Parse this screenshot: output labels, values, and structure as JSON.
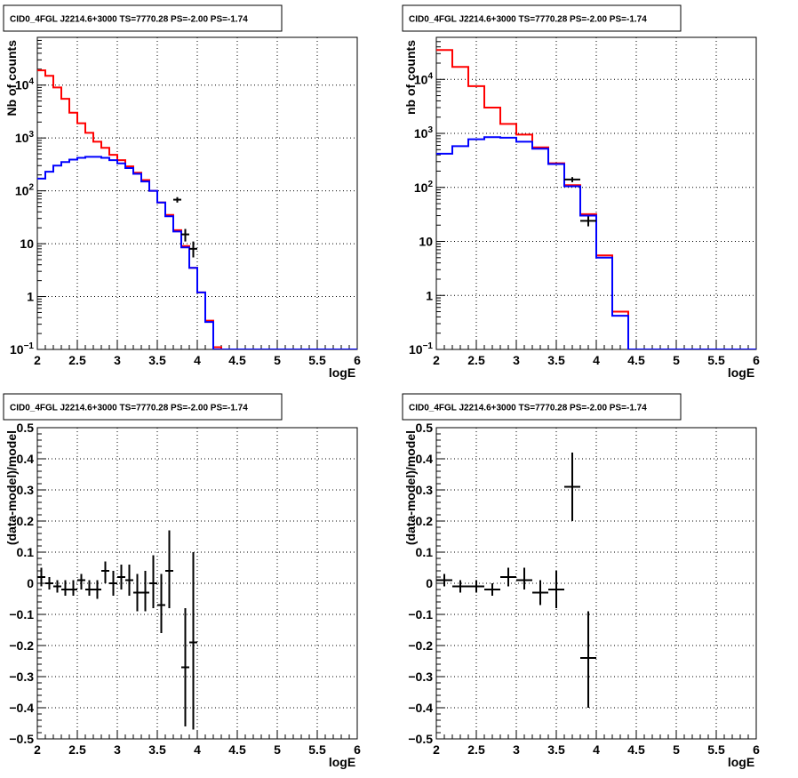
{
  "colors": {
    "model": "#ff0000",
    "model_alt": "#0000ff",
    "data": "#000000",
    "grid": "#000000",
    "frame": "#000000"
  },
  "chart_data": [
    {
      "type": "line",
      "title": "CID0_4FGL J2214.6+3000 TS=7770.28 PS=-2.00 PS=-1.74",
      "xlabel": "logE",
      "ylabel": "Nb of counts",
      "xlim": [
        2,
        6
      ],
      "ylim": [
        0.1,
        80000
      ],
      "log_y": true,
      "grid": true,
      "x_ticks": [
        "2",
        "2.5",
        "3",
        "3.5",
        "4",
        "4.5",
        "5",
        "5.5",
        "6"
      ],
      "y_ticks": [
        {
          "value": 0.1,
          "label": "10",
          "sup": "−1"
        },
        {
          "value": 1,
          "label": "1",
          "sup": ""
        },
        {
          "value": 10,
          "label": "10",
          "sup": ""
        },
        {
          "value": 100,
          "label": "10",
          "sup": "2"
        },
        {
          "value": 1000,
          "label": "10",
          "sup": "3"
        },
        {
          "value": 10000,
          "label": "10",
          "sup": "4"
        }
      ],
      "bin_edges": [
        2.0,
        2.1,
        2.2,
        2.3,
        2.4,
        2.5,
        2.6,
        2.7,
        2.8,
        2.9,
        3.0,
        3.1,
        3.2,
        3.3,
        3.4,
        3.5,
        3.6,
        3.7,
        3.8,
        3.9,
        4.0,
        4.1,
        4.2,
        4.3,
        4.4,
        4.5,
        4.6,
        4.7,
        4.8,
        4.9,
        5.0,
        5.1,
        5.2,
        5.3,
        5.4,
        5.5,
        5.6,
        5.7,
        5.8,
        5.9,
        6.0
      ],
      "series": [
        {
          "color": "#ff0000",
          "values": [
            19000,
            15000,
            9000,
            5500,
            3000,
            1900,
            1250,
            850,
            650,
            480,
            380,
            290,
            220,
            160,
            100,
            60,
            35,
            18,
            9,
            3.5,
            1.2,
            0.35,
            0.11,
            0.1,
            0.1,
            0.1,
            0.1,
            0.1,
            0.1,
            0.1,
            0.1,
            0.1,
            0.1,
            0.1,
            0.1,
            0.1,
            0.1,
            0.1,
            0.1,
            0.1
          ]
        },
        {
          "color": "#0000ff",
          "values": [
            170,
            230,
            300,
            350,
            390,
            420,
            440,
            440,
            420,
            380,
            330,
            270,
            210,
            150,
            100,
            60,
            33,
            17,
            8.5,
            3.5,
            1.2,
            0.33,
            0.1,
            0.1,
            0.1,
            0.1,
            0.1,
            0.1,
            0.1,
            0.1,
            0.1,
            0.1,
            0.1,
            0.1,
            0.1,
            0.1,
            0.1,
            0.1,
            0.1,
            0.1
          ]
        }
      ],
      "points": [
        {
          "x": 3.75,
          "y": 68,
          "xerr": 0.05,
          "ylo": 60,
          "yhi": 76
        },
        {
          "x": 3.85,
          "y": 15,
          "xerr": 0.05,
          "ylo": 11,
          "yhi": 19
        },
        {
          "x": 3.95,
          "y": 8,
          "xerr": 0.05,
          "ylo": 5.5,
          "yhi": 11
        }
      ]
    },
    {
      "type": "line",
      "title": "CID0_4FGL J2214.6+3000 TS=7770.28 PS=-2.00 PS=-1.74",
      "xlabel": "logE",
      "ylabel": "nb of counts",
      "xlim": [
        2,
        6
      ],
      "ylim": [
        0.1,
        60000
      ],
      "log_y": true,
      "grid": true,
      "x_ticks": [
        "2",
        "2.5",
        "3",
        "3.5",
        "4",
        "4.5",
        "5",
        "5.5",
        "6"
      ],
      "y_ticks": [
        {
          "value": 0.1,
          "label": "10",
          "sup": "−1"
        },
        {
          "value": 1,
          "label": "1",
          "sup": ""
        },
        {
          "value": 10,
          "label": "10",
          "sup": ""
        },
        {
          "value": 100,
          "label": "10",
          "sup": "2"
        },
        {
          "value": 1000,
          "label": "10",
          "sup": "3"
        },
        {
          "value": 10000,
          "label": "10",
          "sup": "4"
        }
      ],
      "bin_edges": [
        2.0,
        2.2,
        2.4,
        2.6,
        2.8,
        3.0,
        3.2,
        3.4,
        3.6,
        3.8,
        4.0,
        4.2,
        4.4,
        4.6,
        4.8,
        5.0,
        5.2,
        5.4,
        5.6,
        5.8,
        6.0
      ],
      "series": [
        {
          "color": "#ff0000",
          "values": [
            35000,
            17000,
            7500,
            3000,
            1500,
            950,
            550,
            280,
            110,
            32,
            5.5,
            0.5,
            0.1,
            0.1,
            0.1,
            0.1,
            0.1,
            0.1,
            0.1,
            0.1
          ]
        },
        {
          "color": "#0000ff",
          "values": [
            420,
            580,
            780,
            850,
            830,
            700,
            520,
            270,
            105,
            30,
            5,
            0.42,
            0.1,
            0.1,
            0.1,
            0.1,
            0.1,
            0.1,
            0.1,
            0.1
          ]
        }
      ],
      "points": [
        {
          "x": 3.7,
          "y": 140,
          "xerr": 0.1,
          "ylo": 125,
          "yhi": 155
        },
        {
          "x": 3.9,
          "y": 24,
          "xerr": 0.1,
          "ylo": 19,
          "yhi": 29
        }
      ]
    },
    {
      "type": "scatter",
      "title": "CID0_4FGL J2214.6+3000 TS=7770.28 PS=-2.00 PS=-1.74",
      "xlabel": "logE",
      "ylabel": "(data-model)/model",
      "xlim": [
        2,
        6
      ],
      "ylim": [
        -0.5,
        0.5
      ],
      "log_y": false,
      "grid": true,
      "x_ticks": [
        "2",
        "2.5",
        "3",
        "3.5",
        "4",
        "4.5",
        "5",
        "5.5",
        "6"
      ],
      "y_ticks": [
        {
          "value": -0.5,
          "label": "−0.5",
          "sup": ""
        },
        {
          "value": -0.4,
          "label": "−0.4",
          "sup": ""
        },
        {
          "value": -0.3,
          "label": "−0.3",
          "sup": ""
        },
        {
          "value": -0.2,
          "label": "−0.2",
          "sup": ""
        },
        {
          "value": -0.1,
          "label": "−0.1",
          "sup": ""
        },
        {
          "value": 0,
          "label": "0",
          "sup": ""
        },
        {
          "value": 0.1,
          "label": "0.1",
          "sup": ""
        },
        {
          "value": 0.2,
          "label": "0.2",
          "sup": ""
        },
        {
          "value": 0.3,
          "label": "0.3",
          "sup": ""
        },
        {
          "value": 0.4,
          "label": "0.4",
          "sup": ""
        },
        {
          "value": 0.5,
          "label": "0.5",
          "sup": ""
        }
      ],
      "points": [
        {
          "x": 2.05,
          "y": 0.02,
          "xerr": 0.05,
          "ylo": -0.01,
          "yhi": 0.05
        },
        {
          "x": 2.15,
          "y": 0.0,
          "xerr": 0.05,
          "ylo": -0.02,
          "yhi": 0.02
        },
        {
          "x": 2.25,
          "y": -0.01,
          "xerr": 0.05,
          "ylo": -0.03,
          "yhi": 0.01
        },
        {
          "x": 2.35,
          "y": -0.02,
          "xerr": 0.05,
          "ylo": -0.04,
          "yhi": 0.01
        },
        {
          "x": 2.45,
          "y": -0.02,
          "xerr": 0.05,
          "ylo": -0.04,
          "yhi": 0.01
        },
        {
          "x": 2.55,
          "y": 0.01,
          "xerr": 0.05,
          "ylo": -0.02,
          "yhi": 0.03
        },
        {
          "x": 2.65,
          "y": -0.02,
          "xerr": 0.05,
          "ylo": -0.04,
          "yhi": 0.01
        },
        {
          "x": 2.75,
          "y": -0.02,
          "xerr": 0.05,
          "ylo": -0.05,
          "yhi": 0.01
        },
        {
          "x": 2.85,
          "y": 0.04,
          "xerr": 0.05,
          "ylo": 0.0,
          "yhi": 0.07
        },
        {
          "x": 2.95,
          "y": 0.0,
          "xerr": 0.05,
          "ylo": -0.04,
          "yhi": 0.04
        },
        {
          "x": 3.05,
          "y": 0.02,
          "xerr": 0.05,
          "ylo": -0.02,
          "yhi": 0.06
        },
        {
          "x": 3.15,
          "y": 0.01,
          "xerr": 0.05,
          "ylo": -0.04,
          "yhi": 0.06
        },
        {
          "x": 3.25,
          "y": -0.03,
          "xerr": 0.05,
          "ylo": -0.09,
          "yhi": 0.03
        },
        {
          "x": 3.35,
          "y": -0.03,
          "xerr": 0.05,
          "ylo": -0.09,
          "yhi": 0.04
        },
        {
          "x": 3.45,
          "y": 0.0,
          "xerr": 0.05,
          "ylo": -0.08,
          "yhi": 0.09
        },
        {
          "x": 3.55,
          "y": -0.07,
          "xerr": 0.05,
          "ylo": -0.16,
          "yhi": 0.03
        },
        {
          "x": 3.65,
          "y": 0.04,
          "xerr": 0.05,
          "ylo": -0.08,
          "yhi": 0.17
        },
        {
          "x": 3.85,
          "y": -0.27,
          "xerr": 0.05,
          "ylo": -0.46,
          "yhi": -0.08
        },
        {
          "x": 3.95,
          "y": -0.19,
          "xerr": 0.05,
          "ylo": -0.47,
          "yhi": 0.1
        }
      ]
    },
    {
      "type": "scatter",
      "title": "CID0_4FGL J2214.6+3000 TS=7770.28 PS=-2.00 PS=-1.74",
      "xlabel": "logE",
      "ylabel": "(data-model)/model",
      "xlim": [
        2,
        6
      ],
      "ylim": [
        -0.5,
        0.5
      ],
      "log_y": false,
      "grid": true,
      "x_ticks": [
        "2",
        "2.5",
        "3",
        "3.5",
        "4",
        "4.5",
        "5",
        "5.5",
        "6"
      ],
      "y_ticks": [
        {
          "value": -0.5,
          "label": "−0.5",
          "sup": ""
        },
        {
          "value": -0.4,
          "label": "−0.4",
          "sup": ""
        },
        {
          "value": -0.3,
          "label": "−0.3",
          "sup": ""
        },
        {
          "value": -0.2,
          "label": "−0.2",
          "sup": ""
        },
        {
          "value": -0.1,
          "label": "−0.1",
          "sup": ""
        },
        {
          "value": 0,
          "label": "0",
          "sup": ""
        },
        {
          "value": 0.1,
          "label": "0.1",
          "sup": ""
        },
        {
          "value": 0.2,
          "label": "0.2",
          "sup": ""
        },
        {
          "value": 0.3,
          "label": "0.3",
          "sup": ""
        },
        {
          "value": 0.4,
          "label": "0.4",
          "sup": ""
        },
        {
          "value": 0.5,
          "label": "0.5",
          "sup": ""
        }
      ],
      "points": [
        {
          "x": 2.1,
          "y": 0.01,
          "xerr": 0.1,
          "ylo": -0.01,
          "yhi": 0.03
        },
        {
          "x": 2.3,
          "y": -0.01,
          "xerr": 0.1,
          "ylo": -0.03,
          "yhi": 0.01
        },
        {
          "x": 2.5,
          "y": -0.01,
          "xerr": 0.1,
          "ylo": -0.03,
          "yhi": 0.01
        },
        {
          "x": 2.7,
          "y": -0.02,
          "xerr": 0.1,
          "ylo": -0.04,
          "yhi": 0.0
        },
        {
          "x": 2.9,
          "y": 0.02,
          "xerr": 0.1,
          "ylo": -0.01,
          "yhi": 0.05
        },
        {
          "x": 3.1,
          "y": 0.01,
          "xerr": 0.1,
          "ylo": -0.02,
          "yhi": 0.05
        },
        {
          "x": 3.3,
          "y": -0.03,
          "xerr": 0.1,
          "ylo": -0.07,
          "yhi": 0.01
        },
        {
          "x": 3.5,
          "y": -0.02,
          "xerr": 0.1,
          "ylo": -0.08,
          "yhi": 0.04
        },
        {
          "x": 3.7,
          "y": 0.31,
          "xerr": 0.1,
          "ylo": 0.2,
          "yhi": 0.42
        },
        {
          "x": 3.9,
          "y": -0.24,
          "xerr": 0.1,
          "ylo": -0.4,
          "yhi": -0.09
        }
      ]
    }
  ]
}
